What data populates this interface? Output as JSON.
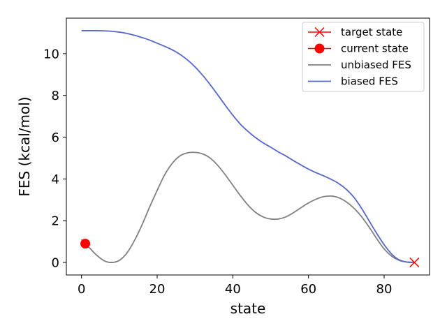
{
  "chart_data": {
    "type": "line",
    "xlabel": "state",
    "ylabel": "FES (kcal/mol)",
    "xlim": [
      -4,
      92
    ],
    "ylim": [
      -0.6,
      11.7
    ],
    "xticks": [
      0,
      20,
      40,
      60,
      80
    ],
    "yticks": [
      0,
      2,
      4,
      6,
      8,
      10
    ],
    "grid": false,
    "legend_position": "top-right",
    "series": [
      {
        "name": "unbiased FES",
        "color": "#808080",
        "x": [
          0,
          2,
          4,
          6,
          8,
          10,
          12,
          14,
          16,
          18,
          20,
          22,
          24,
          26,
          28,
          30,
          32,
          34,
          36,
          38,
          40,
          42,
          44,
          46,
          48,
          50,
          52,
          54,
          56,
          58,
          60,
          62,
          64,
          66,
          68,
          70,
          72,
          74,
          76,
          78,
          80,
          82,
          84,
          86,
          88
        ],
        "y": [
          1.1,
          0.72,
          0.35,
          0.08,
          0.0,
          0.1,
          0.45,
          1.05,
          1.8,
          2.65,
          3.45,
          4.2,
          4.75,
          5.1,
          5.25,
          5.27,
          5.2,
          5.0,
          4.65,
          4.2,
          3.7,
          3.2,
          2.75,
          2.4,
          2.18,
          2.08,
          2.08,
          2.18,
          2.38,
          2.62,
          2.85,
          3.03,
          3.15,
          3.18,
          3.1,
          2.9,
          2.6,
          2.2,
          1.7,
          1.15,
          0.65,
          0.3,
          0.1,
          0.02,
          0.0
        ]
      },
      {
        "name": "biased FES",
        "color": "#5566cc",
        "x": [
          0,
          2,
          4,
          6,
          8,
          10,
          12,
          14,
          16,
          18,
          20,
          22,
          24,
          26,
          28,
          30,
          32,
          34,
          36,
          38,
          40,
          42,
          44,
          46,
          48,
          50,
          52,
          54,
          56,
          58,
          60,
          62,
          64,
          66,
          68,
          70,
          72,
          74,
          76,
          78,
          80,
          82,
          84,
          86,
          88
        ],
        "y": [
          11.1,
          11.1,
          11.1,
          11.09,
          11.07,
          11.03,
          10.97,
          10.88,
          10.77,
          10.65,
          10.5,
          10.35,
          10.18,
          9.97,
          9.7,
          9.37,
          8.97,
          8.52,
          8.03,
          7.53,
          7.05,
          6.62,
          6.28,
          5.98,
          5.73,
          5.52,
          5.3,
          5.1,
          4.88,
          4.67,
          4.47,
          4.3,
          4.15,
          3.98,
          3.78,
          3.5,
          3.12,
          2.6,
          2.0,
          1.4,
          0.85,
          0.4,
          0.12,
          0.02,
          0.0
        ]
      }
    ],
    "markers": [
      {
        "name": "target state",
        "x": 88,
        "y": 0.0,
        "marker": "x",
        "color": "#ff0000"
      },
      {
        "name": "current state",
        "x": 1,
        "y": 0.9,
        "marker": "circle",
        "color": "#ff0000"
      }
    ],
    "legend": [
      "target state",
      "current state",
      "unbiased FES",
      "biased FES"
    ]
  }
}
